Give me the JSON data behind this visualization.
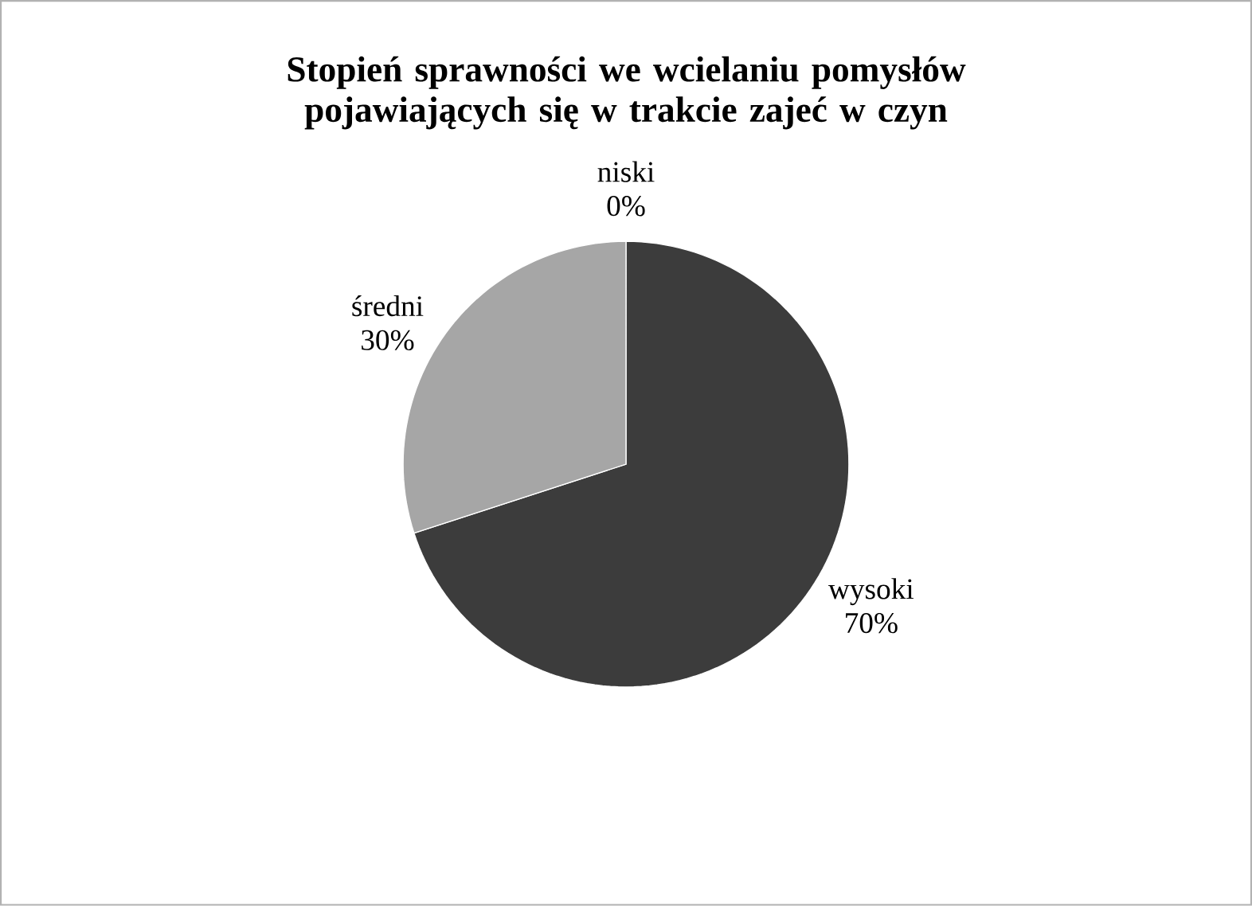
{
  "chart_data": {
    "type": "pie",
    "title": "Stopień sprawności we wcielaniu pomysłów pojawiających  się w trakcie zajeć w czyn",
    "categories": [
      "wysoki",
      "średni",
      "niski"
    ],
    "values": [
      70,
      30,
      0
    ],
    "value_labels": [
      "70%",
      "30%",
      "0%"
    ],
    "colors": [
      "#3c3c3c",
      "#a6a6a6",
      "#7f7f7f"
    ]
  }
}
